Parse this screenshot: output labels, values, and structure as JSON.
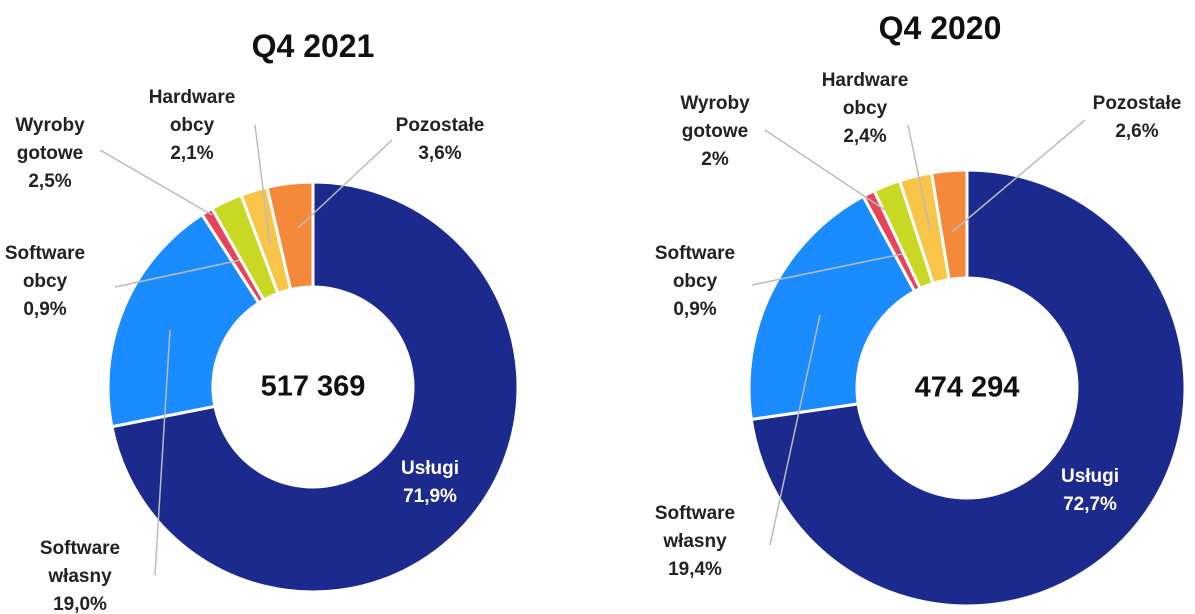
{
  "chart_data": [
    {
      "type": "donut",
      "title": "Q4 2021",
      "total": "517 369",
      "categories": [
        "Usługi",
        "Software własny",
        "Software obcy",
        "Wyroby gotowe",
        "Hardware obcy",
        "Pozostałe"
      ],
      "values": [
        71.9,
        19.0,
        0.9,
        2.5,
        2.1,
        3.6
      ],
      "value_labels": [
        "71,9%",
        "19,0%",
        "0,9%",
        "2,5%",
        "2,1%",
        "3,6%"
      ],
      "colors": [
        "#1b2a8c",
        "#1a8cff",
        "#e8435a",
        "#c9d923",
        "#f8c548",
        "#f5893b"
      ]
    },
    {
      "type": "donut",
      "title": "Q4 2020",
      "total": "474 294",
      "categories": [
        "Usługi",
        "Software własny",
        "Software obcy",
        "Wyroby gotowe",
        "Hardware obcy",
        "Pozostałe"
      ],
      "values": [
        72.7,
        19.4,
        0.9,
        2,
        2.4,
        2.6
      ],
      "value_labels": [
        "72,7%",
        "19,4%",
        "0,9%",
        "2%",
        "2,4%",
        "2,6%"
      ],
      "colors": [
        "#1b2a8c",
        "#1a8cff",
        "#e8435a",
        "#c9d923",
        "#f8c548",
        "#f5893b"
      ]
    }
  ]
}
